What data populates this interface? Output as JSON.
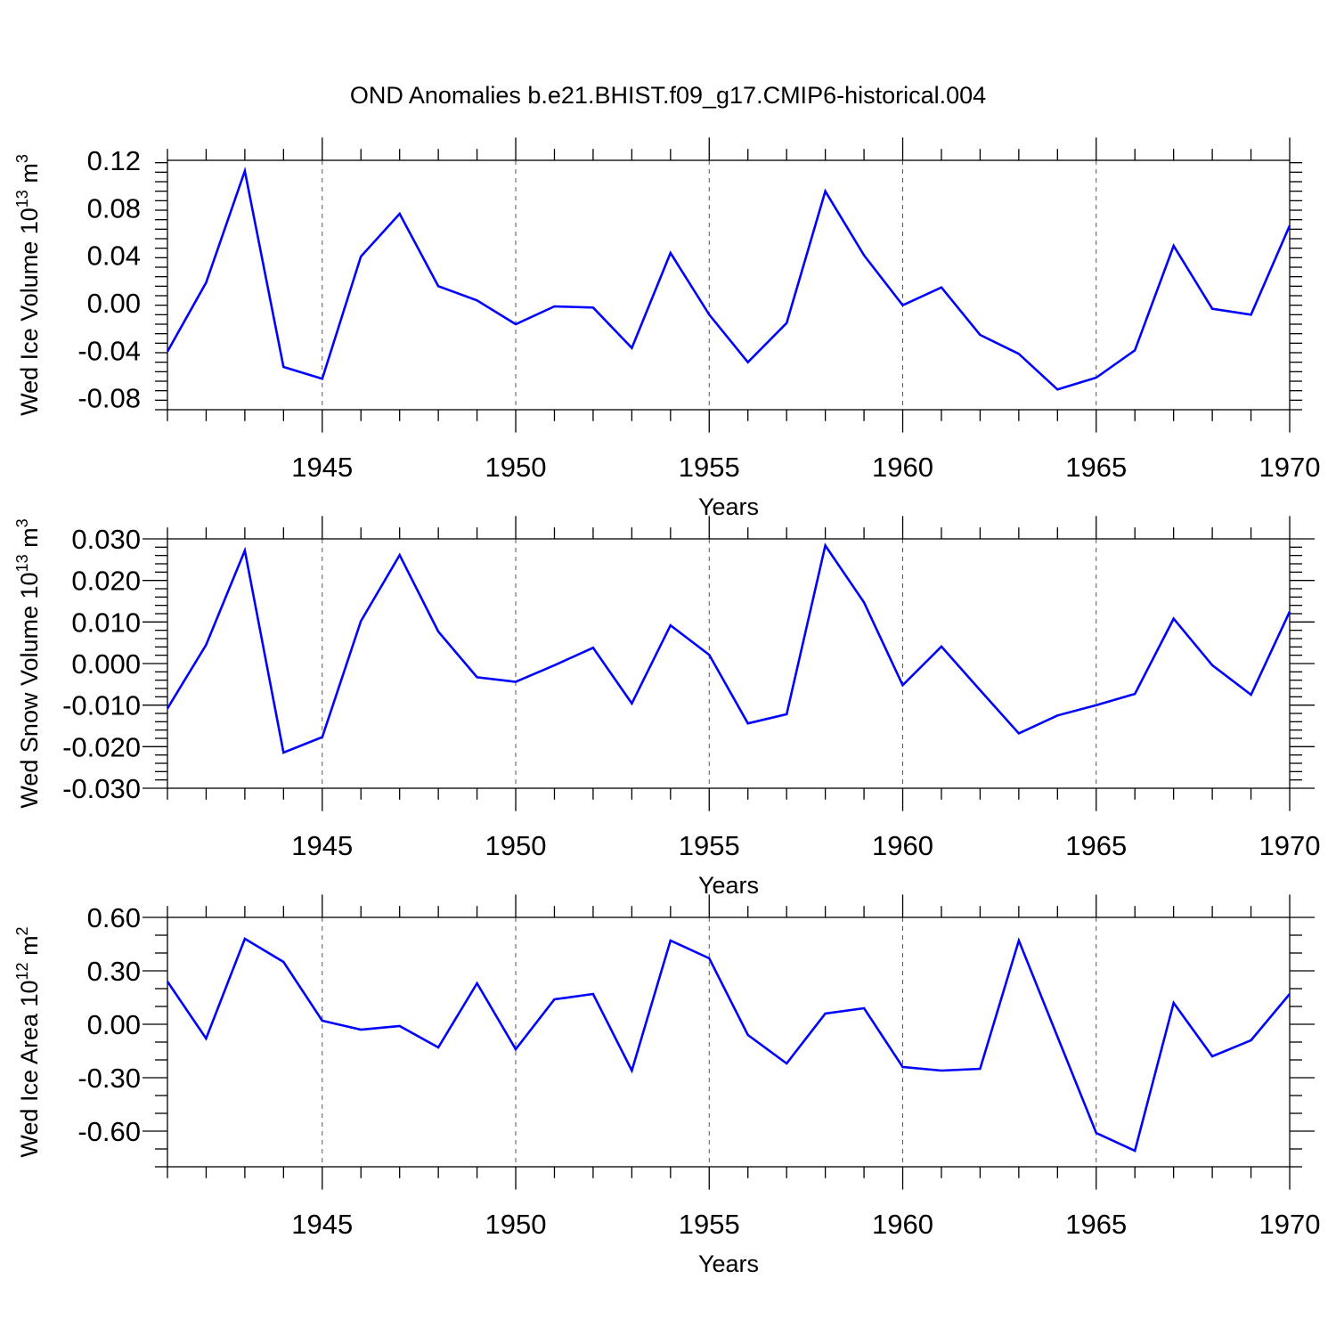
{
  "title": "OND Anomalies b.e21.BHIST.f09_g17.CMIP6-historical.004",
  "series_color": "#0000ff",
  "chart_data": [
    {
      "type": "line",
      "ylabel": {
        "main": "Wed Ice Volume 10",
        "exp": "13",
        "unit": " m",
        "unit_exp": "3"
      },
      "xlabel": "Years",
      "xlim": [
        1941,
        1970
      ],
      "ylim": [
        -0.09,
        0.12
      ],
      "yticks": [
        -0.08,
        -0.04,
        0.0,
        0.04,
        0.08,
        0.12
      ],
      "ytick_labels": [
        "-0.08",
        "-0.04",
        "0.00",
        "0.04",
        "0.08",
        "0.12"
      ],
      "yminor_step": 0.008,
      "xticks": [
        1945,
        1950,
        1955,
        1960,
        1965,
        1970
      ],
      "xtick_labels": [
        "1945",
        "1950",
        "1955",
        "1960",
        "1965",
        "1970"
      ],
      "x": [
        1941,
        1942,
        1943,
        1944,
        1945,
        1946,
        1947,
        1948,
        1949,
        1950,
        1951,
        1952,
        1953,
        1954,
        1955,
        1956,
        1957,
        1958,
        1959,
        1960,
        1961,
        1962,
        1963,
        1964,
        1965,
        1966,
        1967,
        1968,
        1969,
        1970
      ],
      "values": [
        -0.041,
        0.017,
        0.111,
        -0.054,
        -0.064,
        0.039,
        0.075,
        0.014,
        0.002,
        -0.018,
        -0.003,
        -0.004,
        -0.038,
        0.042,
        -0.01,
        -0.05,
        -0.017,
        0.094,
        0.04,
        -0.002,
        0.013,
        -0.027,
        -0.043,
        -0.073,
        -0.063,
        -0.04,
        0.048,
        -0.005,
        -0.01,
        0.065
      ]
    },
    {
      "type": "line",
      "ylabel": {
        "main": "Wed Snow Volume 10",
        "exp": "13",
        "unit": " m",
        "unit_exp": "3"
      },
      "xlabel": "Years",
      "xlim": [
        1941,
        1970
      ],
      "ylim": [
        -0.03,
        0.03
      ],
      "yticks": [
        -0.03,
        -0.02,
        -0.01,
        0.0,
        0.01,
        0.02,
        0.03
      ],
      "ytick_labels": [
        "-0.030",
        "-0.020",
        "-0.010",
        "0.000",
        "0.010",
        "0.020",
        "0.030"
      ],
      "yminor_step": 0.002,
      "xticks": [
        1945,
        1950,
        1955,
        1960,
        1965,
        1970
      ],
      "xtick_labels": [
        "1945",
        "1950",
        "1955",
        "1960",
        "1965",
        "1970"
      ],
      "x": [
        1941,
        1942,
        1943,
        1944,
        1945,
        1946,
        1947,
        1948,
        1949,
        1950,
        1951,
        1952,
        1953,
        1954,
        1955,
        1956,
        1957,
        1958,
        1959,
        1960,
        1961,
        1962,
        1963,
        1964,
        1965,
        1966,
        1967,
        1968,
        1969,
        1970
      ],
      "values": [
        -0.0108,
        0.0045,
        0.0272,
        -0.0214,
        -0.0177,
        0.0102,
        0.0261,
        0.0077,
        -0.0033,
        -0.0044,
        -0.0004,
        0.0038,
        -0.0096,
        0.0092,
        0.0021,
        -0.0144,
        -0.0122,
        0.0284,
        0.0147,
        -0.0052,
        0.0041,
        -0.0064,
        -0.0168,
        -0.0125,
        -0.01,
        -0.0073,
        0.0108,
        -0.0004,
        -0.0075,
        0.0125
      ]
    },
    {
      "type": "line",
      "ylabel": {
        "main": "Wed Ice Area 10",
        "exp": "12",
        "unit": " m",
        "unit_exp": "2"
      },
      "xlabel": "Years",
      "xlim": [
        1941,
        1970
      ],
      "ylim": [
        -0.8,
        0.6
      ],
      "yticks": [
        -0.6,
        -0.3,
        0.0,
        0.3,
        0.6
      ],
      "ytick_labels": [
        "-0.60",
        "-0.30",
        "0.00",
        "0.30",
        "0.60"
      ],
      "yminor_step": 0.1,
      "xticks": [
        1945,
        1950,
        1955,
        1960,
        1965,
        1970
      ],
      "xtick_labels": [
        "1945",
        "1950",
        "1955",
        "1960",
        "1965",
        "1970"
      ],
      "x": [
        1941,
        1942,
        1943,
        1944,
        1945,
        1946,
        1947,
        1948,
        1949,
        1950,
        1951,
        1952,
        1953,
        1954,
        1955,
        1956,
        1957,
        1958,
        1959,
        1960,
        1961,
        1962,
        1963,
        1964,
        1965,
        1966,
        1967,
        1968,
        1969,
        1970
      ],
      "values": [
        0.24,
        -0.08,
        0.48,
        0.35,
        0.02,
        -0.03,
        -0.01,
        -0.13,
        0.23,
        -0.14,
        0.14,
        0.17,
        -0.26,
        0.47,
        0.37,
        -0.06,
        -0.22,
        0.06,
        0.09,
        -0.24,
        -0.26,
        -0.25,
        0.47,
        -0.07,
        -0.61,
        -0.71,
        0.12,
        -0.18,
        -0.09,
        0.17
      ]
    }
  ]
}
